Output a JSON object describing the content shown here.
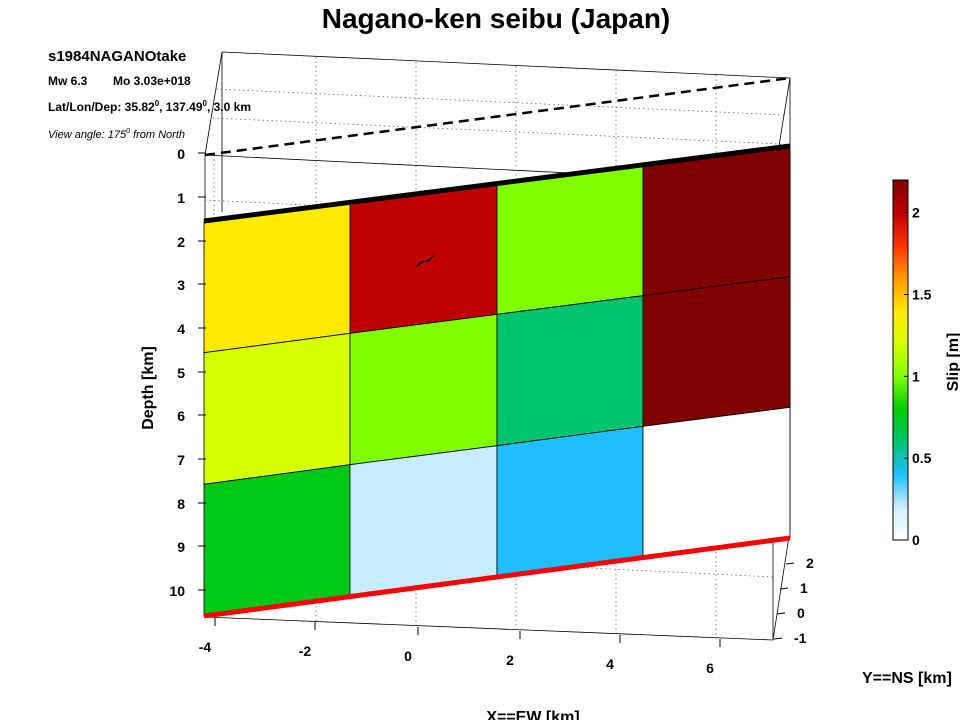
{
  "title": "Nagano-ken seibu (Japan)",
  "info": {
    "event_id": "s1984NAGANOtake",
    "mw_label": "Mw 6.3",
    "mo_label": "Mo 3.03e+018",
    "latlondep_prefix": "Lat/Lon/Dep: 35.82",
    "latlondep_deg_sup": "0",
    "latlondep_mid": ", 137.49",
    "latlondep_deg_sup2": "0",
    "latlondep_suffix": ", 3.0 km",
    "view_prefix": "View angle: 175",
    "view_sup": "0",
    "view_suffix": " from North"
  },
  "axes": {
    "depth_label": "Depth [km]",
    "x_label": "X==EW [km]",
    "y_label": "Y==NS [km]",
    "colorbar_label": "Slip [m]"
  },
  "chart_data": {
    "type": "heatmap",
    "title": "Nagano-ken seibu (Japan)",
    "xlabel": "X==EW [km]",
    "ylabel": "Depth [km]",
    "zlabel": "Y==NS [km]",
    "colorbar_label": "Slip [m]",
    "depth_ticks": [
      "0",
      "1",
      "2",
      "3",
      "4",
      "5",
      "6",
      "7",
      "8",
      "9",
      "10"
    ],
    "x_ticks": [
      "-4",
      "-2",
      "0",
      "2",
      "4",
      "6"
    ],
    "y_ticks": [
      "2",
      "1",
      "0",
      "-1"
    ],
    "colorbar_ticks": [
      "0",
      "0.5",
      "1",
      "1.5",
      "2"
    ],
    "colorbar_range": [
      0,
      2.2
    ],
    "grid": true,
    "slip_grid_m": [
      [
        1.35,
        2.05,
        0.95,
        2.2
      ],
      [
        1.1,
        0.9,
        0.6,
        2.2
      ],
      [
        0.6,
        0.1,
        0.35,
        0.0
      ]
    ],
    "cell_colors": [
      [
        "#ffea00",
        "#bf0000",
        "#80ff00",
        "#800000"
      ],
      [
        "#d5ff00",
        "#80ff00",
        "#00c46e",
        "#800000"
      ],
      [
        "#00c818",
        "#c8ecff",
        "#1ebeff",
        "#ffffff"
      ]
    ],
    "colorbar_colors": [
      "#ffffff",
      "#ccefff",
      "#1ebeff",
      "#00c46e",
      "#00cc00",
      "#80ff00",
      "#d5ff00",
      "#ffea00",
      "#ff9900",
      "#ff3300",
      "#bf0000",
      "#800000"
    ]
  }
}
